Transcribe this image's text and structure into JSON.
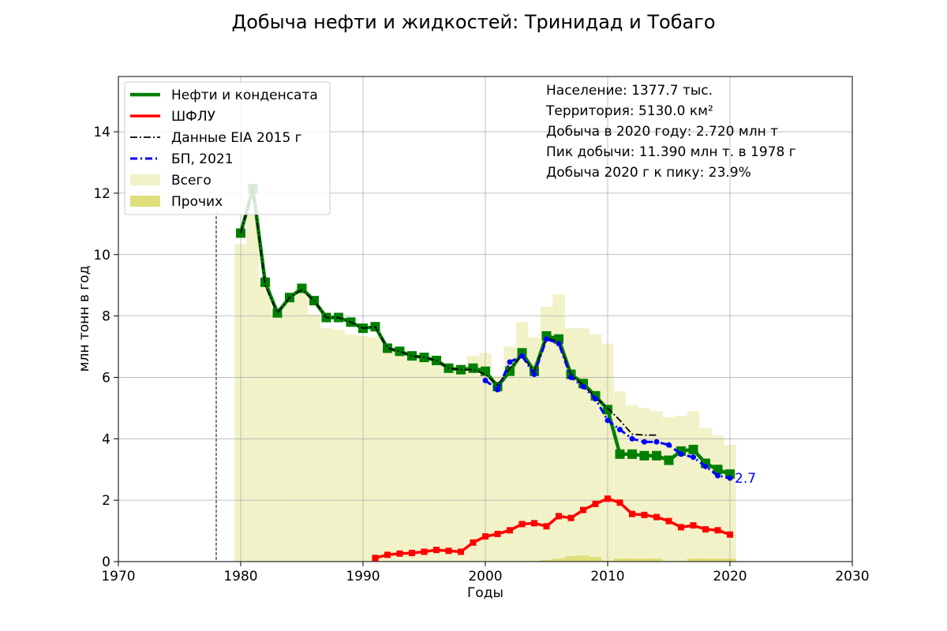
{
  "chart_data": {
    "type": "line",
    "title": "Добыча нефти и жидкостей: Тринидад и Тобаго",
    "xlabel": "Годы",
    "ylabel": "млн тонн в год",
    "xlim": [
      1970,
      2030
    ],
    "ylim": [
      0,
      15.8
    ],
    "xticks": [
      1970,
      1980,
      1990,
      2000,
      2010,
      2020,
      2030
    ],
    "yticks": [
      0,
      2,
      4,
      6,
      8,
      10,
      12,
      14
    ],
    "grid": true,
    "legend_position": "top-left",
    "peak_marker_year": 1978,
    "info": [
      "Население: 1377.7 тыс.",
      "Территория: 5130.0 км²",
      "Добыча в 2020 году: 2.720 млн т",
      "Пик добычи: 11.390 млн т. в 1978 г",
      "Добыча 2020 г к пику: 23.9%"
    ],
    "end_label": "2.7",
    "series": [
      {
        "name": "Нефти и конденсата",
        "style": "line-square",
        "color": "#008000",
        "x": [
          1980,
          1981,
          1982,
          1983,
          1984,
          1985,
          1986,
          1987,
          1988,
          1989,
          1990,
          1991,
          1992,
          1993,
          1994,
          1995,
          1996,
          1997,
          1998,
          1999,
          2000,
          2001,
          2002,
          2003,
          2004,
          2005,
          2006,
          2007,
          2008,
          2009,
          2010,
          2011,
          2012,
          2013,
          2014,
          2015,
          2016,
          2017,
          2018,
          2019,
          2020
        ],
        "values": [
          10.7,
          12.15,
          9.1,
          8.1,
          8.6,
          8.9,
          8.5,
          7.95,
          7.95,
          7.8,
          7.6,
          7.65,
          6.95,
          6.85,
          6.7,
          6.65,
          6.55,
          6.3,
          6.25,
          6.3,
          6.2,
          5.7,
          6.2,
          6.8,
          6.2,
          7.35,
          7.25,
          6.1,
          5.8,
          5.4,
          4.95,
          3.5,
          3.5,
          3.45,
          3.45,
          3.3,
          3.6,
          3.65,
          3.2,
          3.0,
          2.85
        ]
      },
      {
        "name": "ШФЛУ",
        "style": "line-square",
        "color": "#ff0000",
        "x": [
          1991,
          1992,
          1993,
          1994,
          1995,
          1996,
          1997,
          1998,
          1999,
          2000,
          2001,
          2002,
          2003,
          2004,
          2005,
          2006,
          2007,
          2008,
          2009,
          2010,
          2011,
          2012,
          2013,
          2014,
          2015,
          2016,
          2017,
          2018,
          2019,
          2020
        ],
        "values": [
          0.12,
          0.22,
          0.26,
          0.28,
          0.32,
          0.38,
          0.35,
          0.32,
          0.62,
          0.82,
          0.9,
          1.02,
          1.22,
          1.25,
          1.15,
          1.48,
          1.42,
          1.68,
          1.88,
          2.05,
          1.92,
          1.55,
          1.52,
          1.45,
          1.32,
          1.12,
          1.18,
          1.05,
          1.02,
          0.88
        ]
      },
      {
        "name": "Данные EIA 2015 г",
        "style": "dashdot",
        "color": "#000000",
        "x": [
          1980,
          1981,
          1982,
          1983,
          1984,
          1985,
          1986,
          1987,
          1988,
          1989,
          1990,
          1991,
          1992,
          1993,
          1994,
          1995,
          1996,
          1997,
          1998,
          1999,
          2000,
          2001,
          2002,
          2003,
          2004,
          2005,
          2006,
          2007,
          2008,
          2009,
          2010,
          2011,
          2012,
          2013,
          2014
        ],
        "values": [
          10.7,
          12.15,
          9.0,
          8.1,
          8.6,
          8.85,
          8.5,
          7.95,
          7.95,
          7.8,
          7.6,
          7.65,
          6.95,
          6.85,
          6.7,
          6.65,
          6.55,
          6.3,
          6.25,
          6.25,
          6.1,
          5.75,
          6.3,
          6.7,
          6.2,
          7.3,
          7.15,
          6.1,
          5.75,
          5.35,
          5.0,
          4.6,
          4.15,
          4.12,
          4.12
        ]
      },
      {
        "name": "БП, 2021",
        "style": "dashdot-dots",
        "color": "#0000ff",
        "x": [
          2000,
          2001,
          2002,
          2003,
          2004,
          2005,
          2006,
          2007,
          2008,
          2009,
          2010,
          2011,
          2012,
          2013,
          2014,
          2015,
          2016,
          2017,
          2018,
          2019,
          2020
        ],
        "values": [
          5.9,
          5.6,
          6.5,
          6.7,
          6.1,
          7.25,
          7.1,
          6.0,
          5.7,
          5.3,
          4.6,
          4.3,
          4.0,
          3.9,
          3.9,
          3.8,
          3.5,
          3.4,
          3.1,
          2.8,
          2.72
        ]
      },
      {
        "name": "Всего",
        "style": "bar",
        "color": "#f2f2c8",
        "x": [
          1980,
          1981,
          1982,
          1983,
          1984,
          1985,
          1986,
          1987,
          1988,
          1989,
          1990,
          1991,
          1992,
          1993,
          1994,
          1995,
          1996,
          1997,
          1998,
          1999,
          2000,
          2001,
          2002,
          2003,
          2004,
          2005,
          2006,
          2007,
          2008,
          2009,
          2010,
          2011,
          2012,
          2013,
          2014,
          2015,
          2016,
          2017,
          2018,
          2019,
          2020
        ],
        "values": [
          10.35,
          11.3,
          9.05,
          8.05,
          8.55,
          8.95,
          8.05,
          7.6,
          7.55,
          7.4,
          7.35,
          7.3,
          6.95,
          6.85,
          6.7,
          6.6,
          6.55,
          6.3,
          6.4,
          6.7,
          6.8,
          6.05,
          7.0,
          7.8,
          7.3,
          8.3,
          8.7,
          7.6,
          7.6,
          7.4,
          7.1,
          5.55,
          5.1,
          5.0,
          4.9,
          4.7,
          4.75,
          4.9,
          4.35,
          4.1,
          3.8
        ]
      },
      {
        "name": "Прочих",
        "style": "bar",
        "color": "#dede7a",
        "x": [
          2004,
          2005,
          2006,
          2007,
          2008,
          2009,
          2010,
          2011,
          2012,
          2013,
          2014,
          2015,
          2016,
          2017,
          2018,
          2019,
          2020
        ],
        "values": [
          0.02,
          0.05,
          0.1,
          0.18,
          0.2,
          0.15,
          0.03,
          0.1,
          0.1,
          0.1,
          0.1,
          0.02,
          0.02,
          0.1,
          0.1,
          0.1,
          0.1
        ]
      }
    ]
  }
}
